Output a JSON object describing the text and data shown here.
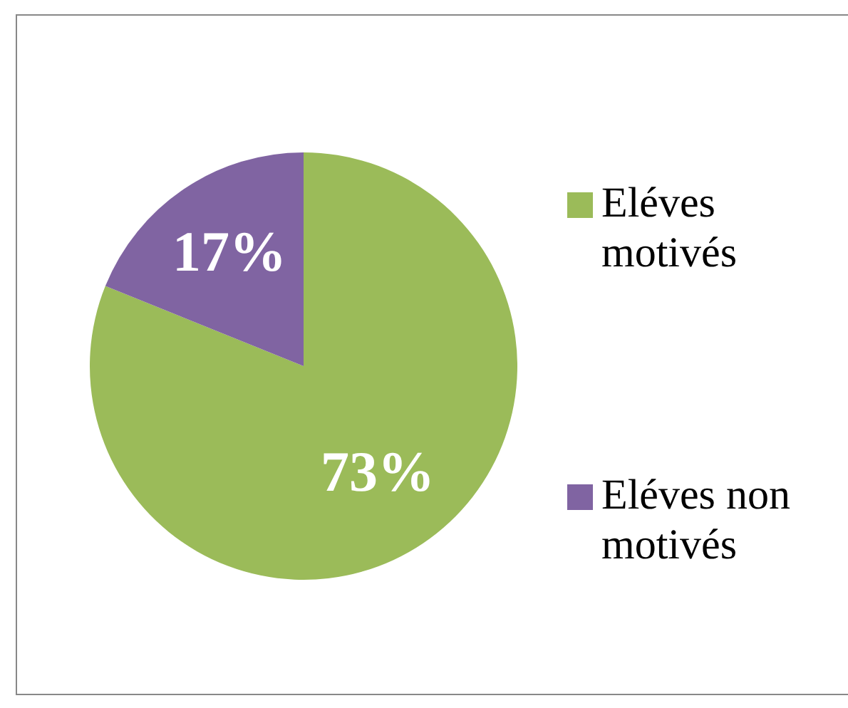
{
  "chart_data": {
    "type": "pie",
    "categories": [
      "Eléves motivés",
      "Eléves non motivés"
    ],
    "values": [
      73,
      17
    ],
    "colors": [
      "#9bbb59",
      "#8064a2"
    ],
    "value_labels": [
      "73%",
      "17%"
    ],
    "legend": "right"
  }
}
